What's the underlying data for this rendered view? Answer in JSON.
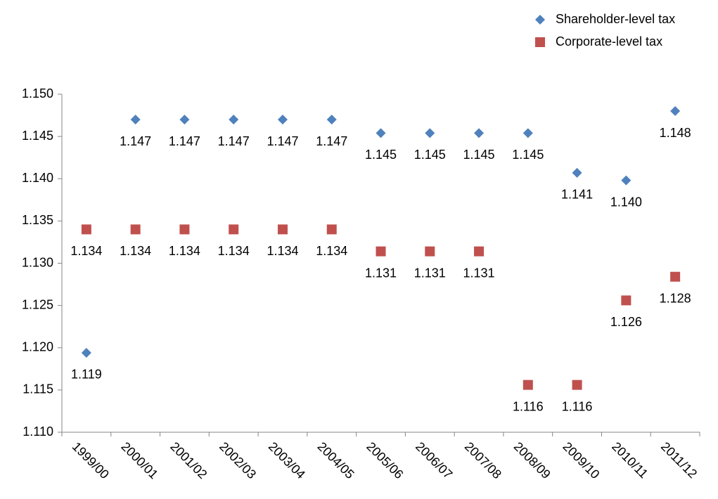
{
  "chart_data": {
    "type": "scatter",
    "categories": [
      "1999/00",
      "2000/01",
      "2001/02",
      "2002/03",
      "2003/04",
      "2004/05",
      "2005/06",
      "2006/07",
      "2007/08",
      "2008/09",
      "2009/10",
      "2010/11",
      "2011/12"
    ],
    "series": [
      {
        "name": "Shareholder-level tax",
        "color": "#4f81bd",
        "marker": "diamond",
        "values": [
          1.1194,
          1.147,
          1.147,
          1.147,
          1.147,
          1.147,
          1.1454,
          1.1454,
          1.1454,
          1.1454,
          1.1407,
          1.1398,
          1.148
        ],
        "value_labels": [
          "1.119",
          "1.147",
          "1.147",
          "1.147",
          "1.147",
          "1.147",
          "1.145",
          "1.145",
          "1.145",
          "1.145",
          "1.141",
          "1.140",
          "1.148"
        ]
      },
      {
        "name": "Corporate-level tax",
        "color": "#c0504d",
        "marker": "square",
        "values": [
          1.134,
          1.134,
          1.134,
          1.134,
          1.134,
          1.134,
          1.1314,
          1.1314,
          1.1314,
          1.1156,
          1.1156,
          1.1256,
          1.1284
        ],
        "value_labels": [
          "1.134",
          "1.134",
          "1.134",
          "1.134",
          "1.134",
          "1.134",
          "1.131",
          "1.131",
          "1.131",
          "1.116",
          "1.116",
          "1.126",
          "1.128"
        ]
      }
    ],
    "ylim": [
      1.11,
      1.15
    ],
    "yticks": [
      {
        "value": 1.11,
        "label": "1.110"
      },
      {
        "value": 1.115,
        "label": "1.115"
      },
      {
        "value": 1.12,
        "label": "1.120"
      },
      {
        "value": 1.125,
        "label": "1.125"
      },
      {
        "value": 1.13,
        "label": "1.130"
      },
      {
        "value": 1.135,
        "label": "1.135"
      },
      {
        "value": 1.14,
        "label": "1.140"
      },
      {
        "value": 1.145,
        "label": "1.145"
      },
      {
        "value": 1.15,
        "label": "1.150"
      }
    ],
    "grid": false,
    "legend": "top-right"
  }
}
